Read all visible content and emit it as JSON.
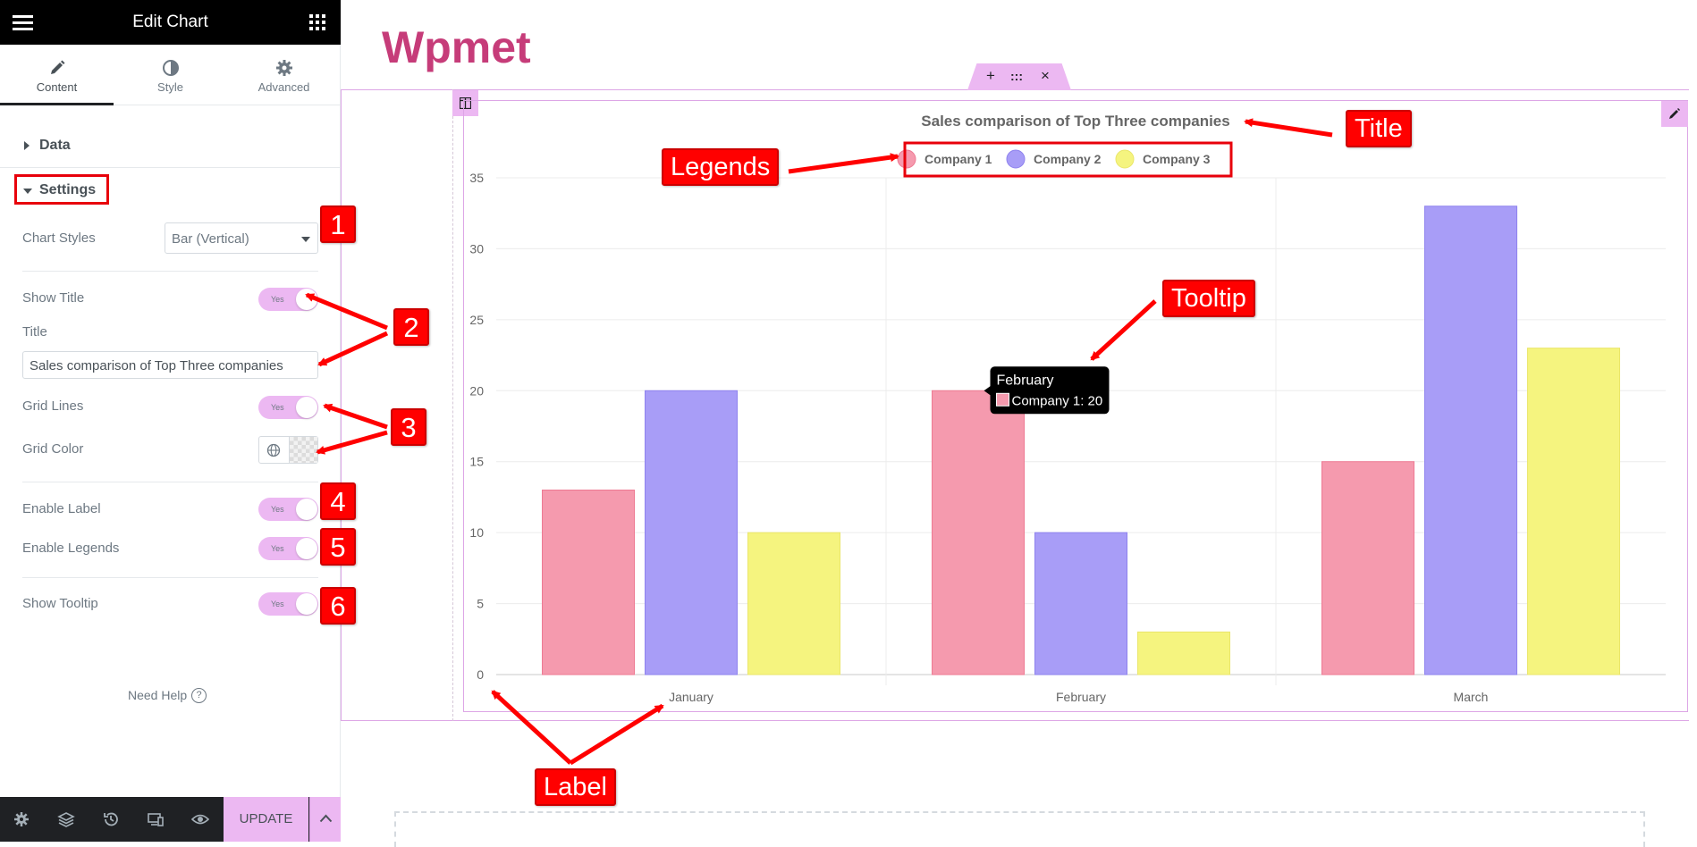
{
  "editor": {
    "title": "Edit Chart",
    "tabs": [
      {
        "label": "Content",
        "icon": "pencil-icon"
      },
      {
        "label": "Style",
        "icon": "contrast-icon"
      },
      {
        "label": "Advanced",
        "icon": "gear-icon"
      }
    ],
    "sections": {
      "data_label": "Data",
      "settings_label": "Settings"
    },
    "controls": {
      "chart_styles_label": "Chart Styles",
      "chart_styles_value": "Bar (Vertical)",
      "show_title_label": "Show Title",
      "title_label": "Title",
      "title_value": "Sales comparison of Top Three companies",
      "grid_lines_label": "Grid Lines",
      "grid_color_label": "Grid Color",
      "enable_label_label": "Enable Label",
      "enable_legends_label": "Enable Legends",
      "show_tooltip_label": "Show Tooltip",
      "toggle_text": "Yes"
    },
    "need_help": "Need Help",
    "update_label": "UPDATE",
    "footer_icons": [
      "gear-icon",
      "layers-icon",
      "history-icon",
      "responsive-icon",
      "eye-icon"
    ]
  },
  "canvas": {
    "site_title": "Wpmet",
    "handle_icons": [
      "+",
      ":::",
      "×"
    ]
  },
  "annotations": {
    "badges": [
      "1",
      "2",
      "3",
      "4",
      "5",
      "6"
    ],
    "legends": "Legends",
    "title": "Title",
    "tooltip": "Tooltip",
    "label": "Label",
    "color": "#ff0000"
  },
  "chart_data": {
    "type": "bar",
    "title": "Sales comparison of Top Three companies",
    "categories": [
      "January",
      "February",
      "March"
    ],
    "series": [
      {
        "name": "Company 1",
        "values": [
          13,
          20,
          15
        ],
        "color": "#f59aae",
        "border": "#ee7a93"
      },
      {
        "name": "Company 2",
        "values": [
          20,
          10,
          33
        ],
        "color": "#a89df7",
        "border": "#8e82ee"
      },
      {
        "name": "Company 3",
        "values": [
          10,
          3,
          23
        ],
        "color": "#f5f47f",
        "border": "#eae66a"
      }
    ],
    "ylim": [
      0,
      35
    ],
    "yticks": [
      0,
      5,
      10,
      15,
      20,
      25,
      30,
      35
    ],
    "grid": true,
    "legend": "top",
    "tooltip": {
      "category": "February",
      "text": "Company 1: 20"
    }
  }
}
